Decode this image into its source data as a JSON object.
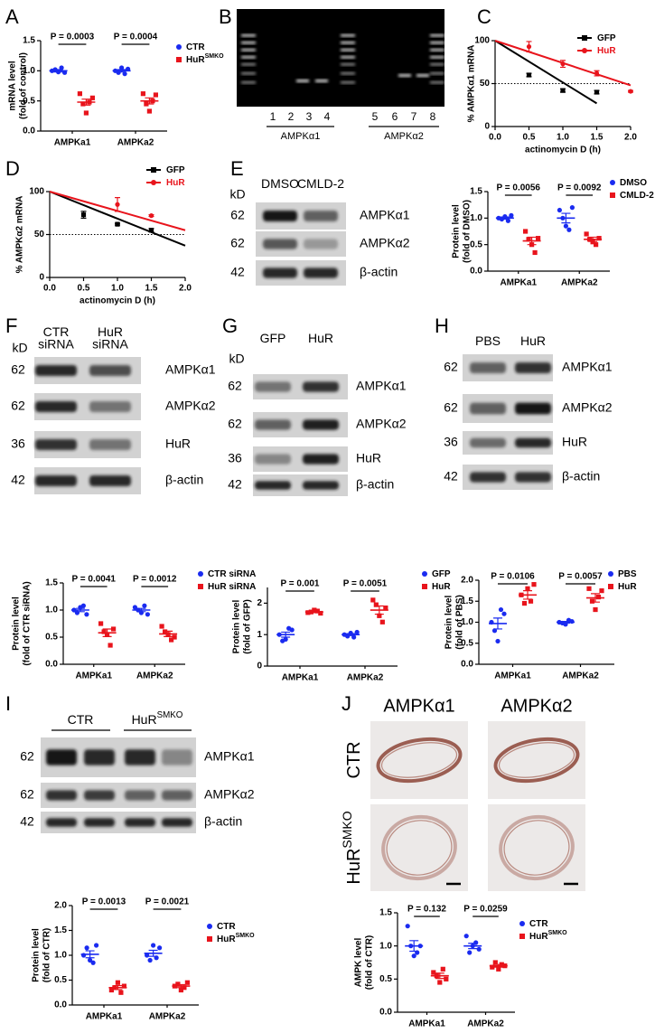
{
  "panel_letters": [
    "A",
    "B",
    "C",
    "D",
    "E",
    "F",
    "G",
    "H",
    "I",
    "J"
  ],
  "gel": {
    "lanes": [
      "1",
      "2",
      "3",
      "4",
      "5",
      "6",
      "7",
      "8"
    ],
    "groups": [
      "AMPKα1",
      "AMPKα2"
    ]
  },
  "blots": [
    {
      "kd_unit": "kD",
      "columns": [
        {
          "text": "DMSO"
        },
        {
          "text": "CMLD-2"
        }
      ],
      "rows": [
        {
          "kd": "62",
          "protein": "AMPKα1"
        },
        {
          "kd": "62",
          "protein": "AMPKα2"
        },
        {
          "kd": "42",
          "protein": "β-actin"
        }
      ]
    },
    {
      "kd_unit": "kD",
      "columns": [
        {
          "text": "CTR",
          "line2": "siRNA"
        },
        {
          "text": "HuR",
          "line2": "siRNA"
        }
      ],
      "rows": [
        {
          "kd": "62",
          "protein": "AMPKα1"
        },
        {
          "kd": "62",
          "protein": "AMPKα2"
        },
        {
          "kd": "36",
          "protein": "HuR"
        },
        {
          "kd": "42",
          "protein": "β-actin"
        }
      ]
    },
    {
      "kd_unit": "kD",
      "columns": [
        {
          "text": "GFP"
        },
        {
          "text": "HuR"
        }
      ],
      "rows": [
        {
          "kd": "62",
          "protein": "AMPKα1"
        },
        {
          "kd": "62",
          "protein": "AMPKα2"
        },
        {
          "kd": "36",
          "protein": "HuR"
        },
        {
          "kd": "42",
          "protein": "β-actin"
        }
      ]
    },
    {
      "columns": [
        {
          "text": "PBS"
        },
        {
          "text": "HuR"
        }
      ],
      "rows": [
        {
          "kd": "62",
          "protein": "AMPKα1"
        },
        {
          "kd": "62",
          "protein": "AMPKα2"
        },
        {
          "kd": "36",
          "protein": "HuR"
        },
        {
          "kd": "42",
          "protein": "β-actin"
        }
      ]
    },
    {
      "columns": [
        {
          "text": "CTR"
        },
        {
          "text": "HuR",
          "sup": "SMKO"
        }
      ],
      "rows": [
        {
          "kd": "62",
          "protein": "AMPKα1"
        },
        {
          "kd": "62",
          "protein": "AMPKα2"
        },
        {
          "kd": "42",
          "protein": "β-actin"
        }
      ]
    }
  ],
  "histology": {
    "columns": [
      "AMPKα1",
      "AMPKα2"
    ],
    "rows": [
      {
        "text": "CTR"
      },
      {
        "text": "HuR",
        "sup": "SMKO"
      }
    ]
  },
  "chart_data": [
    {
      "type": "strip",
      "ylabel": [
        "mRNA level",
        "(fold of control)"
      ],
      "categories": [
        "AMPKa1",
        "AMPKa2"
      ],
      "ylim": [
        0,
        1.5
      ],
      "yticks": [
        {
          "value": 0,
          "label": "0.0"
        },
        0.5,
        {
          "value": 1,
          "label": "1.0"
        },
        1.5
      ],
      "p_values": [
        "P = 0.0003",
        "P = 0.0004"
      ],
      "series": [
        {
          "name": "CTR",
          "color": "#1a2bf0",
          "marker": "circle",
          "points": [
            [
              1.0,
              1.02,
              0.98,
              1.05,
              0.97
            ],
            [
              1.0,
              0.97,
              1.05,
              0.95,
              1.03
            ]
          ],
          "mean": [
            1.0,
            1.0
          ],
          "sem": [
            0.02,
            0.02
          ]
        },
        {
          "name": "HuR",
          "name_sup": "SMKO",
          "color": "#e8141c",
          "marker": "square",
          "points": [
            [
              0.62,
              0.45,
              0.3,
              0.48,
              0.55
            ],
            [
              0.62,
              0.45,
              0.33,
              0.5,
              0.6
            ]
          ],
          "mean": [
            0.48,
            0.5
          ],
          "sem": [
            0.05,
            0.05
          ]
        }
      ]
    },
    {
      "type": "line",
      "ylabel": [
        "% AMPKα1 mRNA"
      ],
      "xlabel": "actinomycin D (h)",
      "xlim": [
        0,
        2
      ],
      "xticks": [
        {
          "value": 0,
          "label": "0.0"
        },
        0.5,
        {
          "value": 1,
          "label": "1.0"
        },
        1.5,
        {
          "value": 2,
          "label": "2.0"
        }
      ],
      "ylim": [
        0,
        100
      ],
      "yticks": [
        0,
        50,
        100
      ],
      "reference_line": 50,
      "series": [
        {
          "name": "GFP",
          "color": "#000000",
          "marker": "square",
          "x": [
            0.5,
            1,
            1.5
          ],
          "values": [
            60,
            42,
            40
          ],
          "errors": [
            2,
            2,
            2
          ],
          "fit": {
            "x": [
              0,
              1.5
            ],
            "values": [
              100,
              27
            ]
          }
        },
        {
          "name": "HuR",
          "color": "#e8141c",
          "marker": "circle",
          "x": [
            0.5,
            1,
            1.5,
            2
          ],
          "values": [
            93,
            73,
            62,
            41
          ],
          "errors": [
            6,
            4,
            3,
            1
          ],
          "fit": {
            "x": [
              0,
              2
            ],
            "values": [
              100,
              48
            ]
          }
        }
      ]
    },
    {
      "type": "line",
      "ylabel": [
        "% AMPKα2 mRNA"
      ],
      "xlabel": "actinomycin D (h)",
      "xlim": [
        0,
        2
      ],
      "xticks": [
        {
          "value": 0,
          "label": "0.0"
        },
        0.5,
        {
          "value": 1,
          "label": "1.0"
        },
        1.5,
        {
          "value": 2,
          "label": "2.0"
        }
      ],
      "ylim": [
        0,
        100
      ],
      "yticks": [
        0,
        50,
        100
      ],
      "reference_line": 50,
      "series": [
        {
          "name": "GFP",
          "color": "#000000",
          "marker": "square",
          "x": [
            0.5,
            1,
            1.5
          ],
          "values": [
            73,
            62,
            55
          ],
          "errors": [
            4,
            1,
            2
          ],
          "fit": {
            "x": [
              0,
              2
            ],
            "values": [
              100,
              37
            ]
          }
        },
        {
          "name": "HuR",
          "color": "#e8141c",
          "marker": "circle",
          "x": [
            1,
            1.5
          ],
          "values": [
            85,
            72
          ],
          "errors": [
            8,
            1
          ],
          "fit": {
            "x": [
              0,
              2
            ],
            "values": [
              100,
              55
            ]
          }
        }
      ]
    },
    {
      "type": "strip",
      "ylabel": [
        "Protein  level",
        "(fold of DMSO)"
      ],
      "categories": [
        "AMPKa1",
        "AMPKa2"
      ],
      "ylim": [
        0,
        1.5
      ],
      "yticks": [
        {
          "value": 0,
          "label": "0.0"
        },
        0.5,
        {
          "value": 1,
          "label": "1.0"
        },
        1.5
      ],
      "p_values": [
        "P = 0.0056",
        "P = 0.0092"
      ],
      "series": [
        {
          "name": "DMSO",
          "color": "#1a2bf0",
          "marker": "circle",
          "points": [
            [
              1.0,
              0.98,
              1.03,
              0.95,
              1.05
            ],
            [
              1.15,
              1.0,
              0.85,
              0.78,
              1.2
            ]
          ],
          "mean": [
            1.0,
            1.0
          ],
          "sem": [
            0.02,
            0.09
          ]
        },
        {
          "name": "CMLD-2",
          "color": "#e8141c",
          "marker": "square",
          "points": [
            [
              0.75,
              0.6,
              0.5,
              0.35,
              0.62
            ],
            [
              0.7,
              0.6,
              0.55,
              0.5,
              0.62
            ]
          ],
          "mean": [
            0.57,
            0.6
          ],
          "sem": [
            0.07,
            0.04
          ]
        }
      ]
    },
    {
      "type": "strip",
      "ylabel": [
        "Protein  level",
        "(fold of CTR siRNA)"
      ],
      "categories": [
        "AMPKa1",
        "AMPKa2"
      ],
      "ylim": [
        0,
        1.5
      ],
      "yticks": [
        {
          "value": 0,
          "label": "0.0"
        },
        0.5,
        {
          "value": 1,
          "label": "1.0"
        },
        1.5
      ],
      "p_values": [
        "P = 0.0041",
        "P = 0.0012"
      ],
      "series": [
        {
          "name": "CTR siRNA",
          "color": "#1a2bf0",
          "marker": "circle",
          "points": [
            [
              1.0,
              0.95,
              1.05,
              1.08,
              0.92
            ],
            [
              1.05,
              1.0,
              0.95,
              1.08,
              0.92
            ]
          ],
          "mean": [
            1.0,
            1.0
          ],
          "sem": [
            0.03,
            0.03
          ]
        },
        {
          "name": "HuR siRNA",
          "color": "#e8141c",
          "marker": "square",
          "points": [
            [
              0.75,
              0.6,
              0.55,
              0.35,
              0.65
            ],
            [
              0.7,
              0.6,
              0.55,
              0.45,
              0.5
            ]
          ],
          "mean": [
            0.58,
            0.56
          ],
          "sem": [
            0.07,
            0.05
          ]
        }
      ]
    },
    {
      "type": "strip",
      "ylabel": [
        "Protein  level",
        "(fold of GFP)"
      ],
      "categories": [
        "AMPKa1",
        "AMPKa2"
      ],
      "ylim": [
        0,
        2.5
      ],
      "yticks": [
        0,
        1,
        2
      ],
      "p_values": [
        "P = 0.001",
        "P = 0.0051"
      ],
      "series": [
        {
          "name": "GFP",
          "color": "#1a2bf0",
          "marker": "circle",
          "points": [
            [
              1.0,
              0.8,
              0.85,
              1.2,
              1.15
            ],
            [
              1.0,
              0.95,
              1.05,
              0.92,
              1.08
            ]
          ],
          "mean": [
            1.0,
            1.0
          ],
          "sem": [
            0.08,
            0.03
          ]
        },
        {
          "name": "HuR",
          "color": "#e8141c",
          "marker": "square",
          "points": [
            [
              1.7,
              1.72,
              1.78,
              1.75,
              1.68
            ],
            [
              2.1,
              1.95,
              1.6,
              1.4,
              1.85
            ]
          ],
          "mean": [
            1.72,
            1.78
          ],
          "sem": [
            0.02,
            0.13
          ]
        }
      ]
    },
    {
      "type": "strip",
      "ylabel": [
        "Protein  level",
        "(fold of PBS)"
      ],
      "categories": [
        "AMPKa1",
        "AMPKa2"
      ],
      "ylim": [
        0,
        2
      ],
      "yticks": [
        {
          "value": 0,
          "label": "0.0"
        },
        0.5,
        {
          "value": 1,
          "label": "1.0"
        },
        1.5,
        {
          "value": 2,
          "label": "2.0"
        }
      ],
      "p_values": [
        "P = 0.0106",
        "P = 0.0057"
      ],
      "series": [
        {
          "name": "PBS",
          "color": "#1a2bf0",
          "marker": "circle",
          "points": [
            [
              1.0,
              0.8,
              0.55,
              1.3,
              1.2
            ],
            [
              1.0,
              0.98,
              0.95,
              1.05,
              1.02
            ]
          ],
          "mean": [
            0.97,
            1.0
          ],
          "sem": [
            0.13,
            0.02
          ]
        },
        {
          "name": "HuR",
          "color": "#e8141c",
          "marker": "square",
          "points": [
            [
              1.65,
              1.45,
              1.8,
              1.5,
              1.9
            ],
            [
              1.8,
              1.5,
              1.3,
              1.6,
              1.75
            ]
          ],
          "mean": [
            1.65,
            1.58
          ],
          "sem": [
            0.1,
            0.1
          ]
        }
      ]
    },
    {
      "type": "strip",
      "ylabel": [
        "Protein level",
        "(fold of CTR)"
      ],
      "categories": [
        "AMPKa1",
        "AMPKa2"
      ],
      "ylim": [
        0,
        2
      ],
      "yticks": [
        {
          "value": 0,
          "label": "0.0"
        },
        0.5,
        {
          "value": 1,
          "label": "1.0"
        },
        1.5,
        {
          "value": 2,
          "label": "2.0"
        }
      ],
      "p_values": [
        "P = 0.0013",
        "P = 0.0021"
      ],
      "series": [
        {
          "name": "CTR",
          "color": "#1a2bf0",
          "marker": "circle",
          "points": [
            [
              1.0,
              1.15,
              0.9,
              0.85,
              1.2
            ],
            [
              1.0,
              0.9,
              1.2,
              0.95,
              1.15
            ]
          ],
          "mean": [
            1.02,
            1.04
          ],
          "sem": [
            0.07,
            0.06
          ]
        },
        {
          "name": "HuR",
          "name_sup": "SMKO",
          "color": "#e8141c",
          "marker": "square",
          "points": [
            [
              0.3,
              0.35,
              0.45,
              0.25,
              0.38
            ],
            [
              0.38,
              0.42,
              0.3,
              0.35,
              0.45
            ]
          ],
          "mean": [
            0.35,
            0.38
          ],
          "sem": [
            0.04,
            0.03
          ]
        }
      ]
    },
    {
      "type": "strip",
      "ylabel": [
        "AMPK level",
        "(fold of CTR)"
      ],
      "categories": [
        "AMPKa1",
        "AMPKa2"
      ],
      "ylim": [
        0,
        1.5
      ],
      "yticks": [
        {
          "value": 0,
          "label": "0.0"
        },
        0.5,
        {
          "value": 1,
          "label": "1.0"
        },
        1.5
      ],
      "p_values": [
        "P = 0.132",
        "P = 0.0259"
      ],
      "series": [
        {
          "name": "CTR",
          "color": "#1a2bf0",
          "marker": "circle",
          "points": [
            [
              1.3,
              1.0,
              0.85,
              0.9,
              1.0
            ],
            [
              1.15,
              0.9,
              1.0,
              1.05,
              0.95
            ]
          ],
          "mean": [
            1.0,
            1.0
          ],
          "sem": [
            0.08,
            0.04
          ]
        },
        {
          "name": "HuR",
          "name_sup": "SMKO",
          "color": "#e8141c",
          "marker": "square",
          "points": [
            [
              0.6,
              0.55,
              0.45,
              0.65,
              0.5
            ],
            [
              0.68,
              0.75,
              0.65,
              0.72,
              0.7
            ]
          ],
          "mean": [
            0.55,
            0.7
          ],
          "sem": [
            0.04,
            0.02
          ]
        }
      ]
    }
  ]
}
